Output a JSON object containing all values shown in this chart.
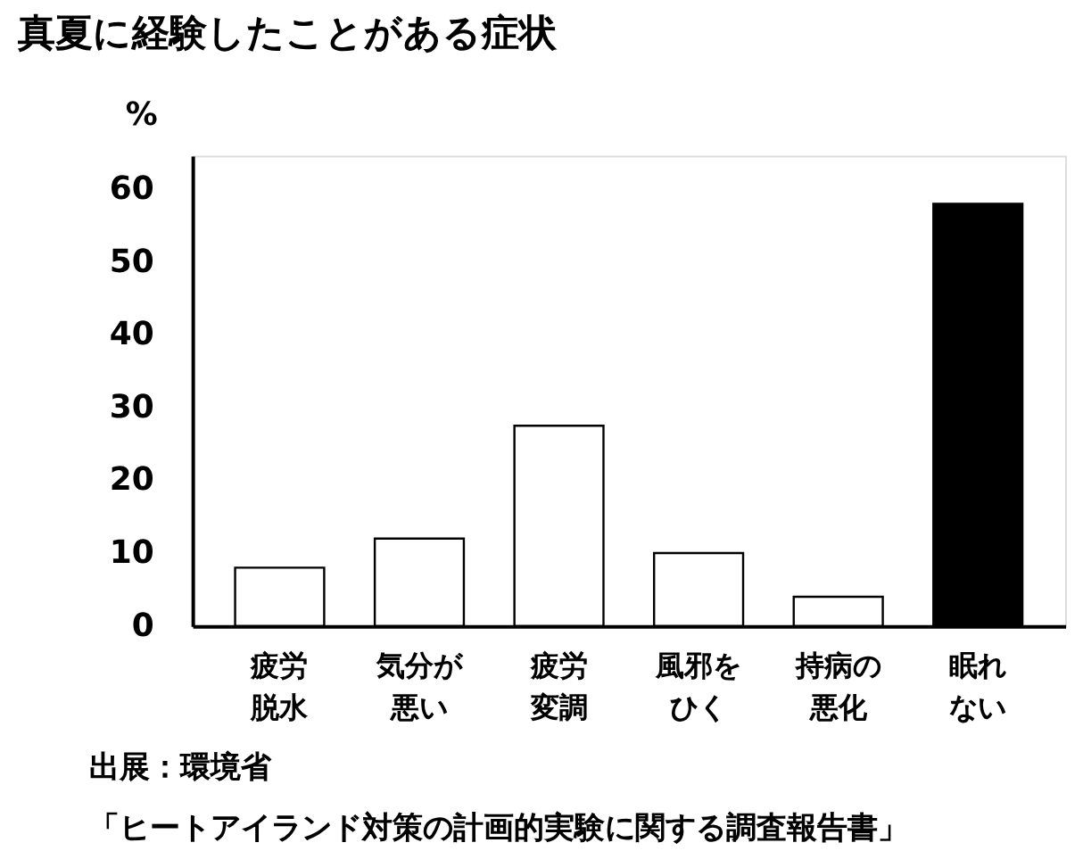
{
  "chart_data": {
    "type": "bar",
    "title": "真夏に経験したことがある症状",
    "ylabel": "%",
    "categories": [
      "疲労脱水",
      "気分が悪い",
      "疲労変調",
      "風邪をひく",
      "持病の悪化",
      "眠れない"
    ],
    "values": [
      8,
      12,
      27.5,
      10,
      4,
      58
    ],
    "colors": [
      "#ffffff",
      "#ffffff",
      "#ffffff",
      "#ffffff",
      "#ffffff",
      "#000000"
    ],
    "ylim": [
      0,
      64.6
    ],
    "yticks": [
      0,
      10,
      20,
      30,
      40,
      50,
      60
    ],
    "grid": false,
    "annotations": [
      "出展：環境省",
      "「ヒートアイランド対策の計画的実験に関する調査報告書」"
    ]
  }
}
